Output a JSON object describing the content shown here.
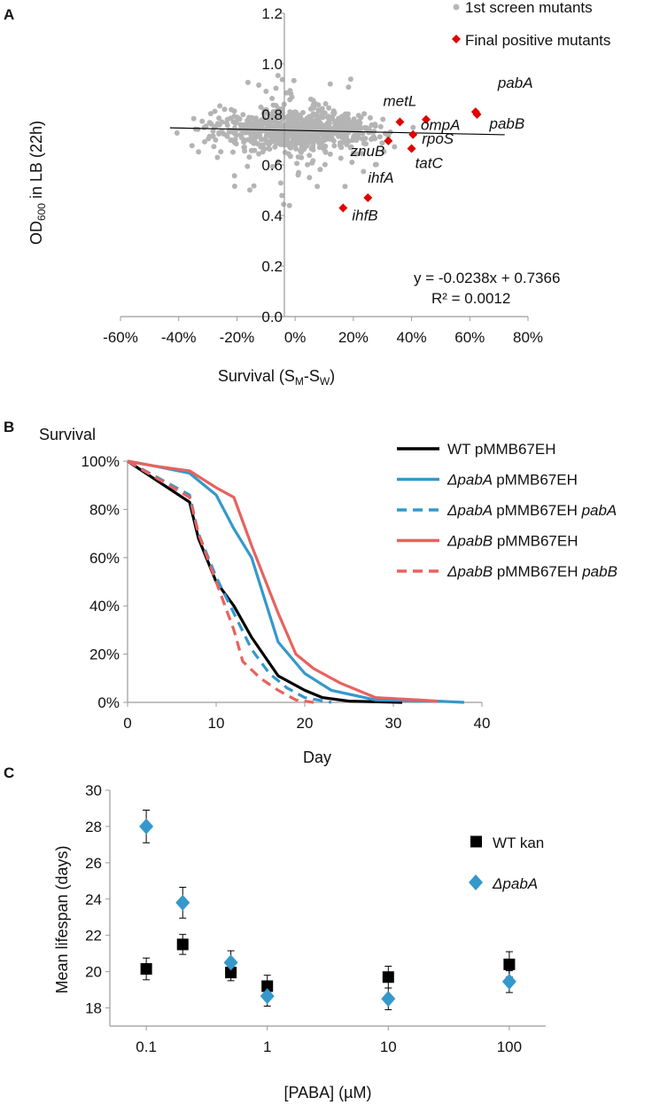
{
  "chart_data": [
    {
      "panel": "A",
      "type": "scatter",
      "xlabel_main": "Survival (S",
      "xlabel_sub1": "M",
      "xlabel_mid": "-S",
      "xlabel_sub2": "W",
      "xlabel_end": ")",
      "ylabel_pre": "OD",
      "ylabel_sub": "600",
      "ylabel_post": " in LB (22h)",
      "xlim": [
        -0.6,
        0.8
      ],
      "ylim": [
        0,
        1.2
      ],
      "x_ticks": [
        -0.6,
        -0.4,
        -0.2,
        0,
        0.2,
        0.4,
        0.6,
        0.8
      ],
      "x_tick_labels": [
        "-60%",
        "-40%",
        "-20%",
        "0%",
        "20%",
        "40%",
        "60%",
        "80%"
      ],
      "y_ticks": [
        0,
        0.2,
        0.4,
        0.6,
        0.8,
        1.0,
        1.2
      ],
      "y_tick_labels": [
        "0.0",
        "0.2",
        "0.4",
        "0.6",
        "0.8",
        "1.0",
        "1.2"
      ],
      "legend": [
        "1st screen mutants",
        "Final positive mutants"
      ],
      "trendline": {
        "slope": -0.0238,
        "intercept": 0.7366,
        "x_range": [
          -0.43,
          0.72
        ]
      },
      "equation": "y = -0.0238x + 0.7366",
      "r_squared": "R² = 0.0012",
      "series": [
        {
          "name": "Final positive mutants",
          "points": [
            {
              "label": "pabA",
              "x": 0.62,
              "y": 0.81
            },
            {
              "label": "pabB",
              "x": 0.625,
              "y": 0.8
            },
            {
              "label": "metL",
              "x": 0.36,
              "y": 0.77
            },
            {
              "label": "ompA",
              "x": 0.45,
              "y": 0.78
            },
            {
              "label": "rpoS",
              "x": 0.405,
              "y": 0.72
            },
            {
              "label": "znuB",
              "x": 0.32,
              "y": 0.695
            },
            {
              "label": "tatC",
              "x": 0.4,
              "y": 0.665
            },
            {
              "label": "ihfA",
              "x": 0.25,
              "y": 0.47
            },
            {
              "label": "ihfB",
              "x": 0.165,
              "y": 0.43
            }
          ]
        }
      ]
    },
    {
      "panel": "B",
      "type": "line",
      "ylabel": "Survival",
      "xlabel": "Day",
      "xlim": [
        0,
        40
      ],
      "ylim": [
        0,
        1
      ],
      "x_ticks": [
        0,
        10,
        20,
        30,
        40
      ],
      "x_tick_labels": [
        "0",
        "10",
        "20",
        "30",
        "40"
      ],
      "y_ticks": [
        0,
        0.2,
        0.4,
        0.6,
        0.8,
        1.0
      ],
      "y_tick_labels": [
        "0%",
        "20%",
        "40%",
        "60%",
        "80%",
        "100%"
      ],
      "series": [
        {
          "name": "WT pMMB67EH",
          "strain": "WT",
          "plasmid": "pMMB67EH",
          "insert": "",
          "italic": false,
          "color": "#000000",
          "dash": false,
          "x": [
            0,
            7,
            8,
            10,
            12,
            14,
            17,
            20,
            22,
            25,
            31
          ],
          "y": [
            1.0,
            0.83,
            0.68,
            0.5,
            0.4,
            0.27,
            0.11,
            0.05,
            0.02,
            0.005,
            0
          ]
        },
        {
          "name": "ΔpabA pMMB67EH",
          "strain": "ΔpabA",
          "plasmid": "pMMB67EH",
          "insert": "",
          "italic": true,
          "color": "#3598cb",
          "dash": false,
          "x": [
            0,
            3,
            7,
            10,
            12,
            14,
            17,
            20,
            23,
            28,
            35,
            38
          ],
          "y": [
            1.0,
            0.98,
            0.95,
            0.86,
            0.72,
            0.6,
            0.25,
            0.12,
            0.05,
            0.01,
            0.005,
            0
          ]
        },
        {
          "name": "ΔpabA pMMB67EH pabA",
          "strain": "ΔpabA",
          "plasmid": "pMMB67EH",
          "insert": "pabA",
          "italic": true,
          "color": "#3598cb",
          "dash": true,
          "x": [
            0,
            7,
            8,
            10,
            12,
            14,
            16,
            18,
            20,
            23
          ],
          "y": [
            1.0,
            0.86,
            0.7,
            0.52,
            0.37,
            0.22,
            0.12,
            0.06,
            0.02,
            0
          ]
        },
        {
          "name": "ΔpabB pMMB67EH",
          "strain": "ΔpabB",
          "plasmid": "pMMB67EH",
          "insert": "",
          "italic": true,
          "color": "#e8625e",
          "dash": false,
          "x": [
            0,
            3,
            7,
            10,
            12,
            14,
            17,
            19,
            21,
            24,
            28,
            33,
            35
          ],
          "y": [
            1.0,
            0.98,
            0.96,
            0.89,
            0.85,
            0.65,
            0.37,
            0.2,
            0.14,
            0.08,
            0.02,
            0.01,
            0.005
          ]
        },
        {
          "name": "ΔpabB pMMB67EH pabB",
          "strain": "ΔpabB",
          "plasmid": "pMMB67EH",
          "insert": "pabB",
          "italic": true,
          "color": "#e8625e",
          "dash": true,
          "x": [
            0,
            7,
            8,
            10,
            12,
            13,
            15,
            17,
            19,
            21
          ],
          "y": [
            1.0,
            0.85,
            0.7,
            0.5,
            0.3,
            0.17,
            0.1,
            0.05,
            0.01,
            0
          ]
        }
      ]
    },
    {
      "panel": "C",
      "type": "scatter",
      "xscale": "log",
      "xlabel": "[PABA] (µM)",
      "ylabel": "Mean lifespan (days)",
      "xlim": [
        0.05,
        200
      ],
      "ylim": [
        17,
        30
      ],
      "x_ticks": [
        0.1,
        1,
        10,
        100
      ],
      "x_tick_labels": [
        "0.1",
        "1",
        "10",
        "100"
      ],
      "y_ticks": [
        18,
        20,
        22,
        24,
        26,
        28,
        30
      ],
      "y_tick_labels": [
        "18",
        "20",
        "22",
        "24",
        "26",
        "28",
        "30"
      ],
      "series": [
        {
          "name": "WT kan",
          "italic": false,
          "marker": "square",
          "color": "#000000",
          "x": [
            0.1,
            0.2,
            0.5,
            1,
            10,
            100
          ],
          "y": [
            20.15,
            21.5,
            19.95,
            19.2,
            19.7,
            20.4
          ],
          "err": [
            0.6,
            0.55,
            0.45,
            0.6,
            0.6,
            0.7
          ]
        },
        {
          "name": "ΔpabA",
          "italic": true,
          "marker": "diamond",
          "color": "#3598cb",
          "x": [
            0.1,
            0.2,
            0.5,
            1,
            10,
            100
          ],
          "y": [
            28.0,
            23.8,
            20.5,
            18.65,
            18.5,
            19.45
          ],
          "err": [
            0.9,
            0.85,
            0.65,
            0.55,
            0.6,
            0.6
          ]
        }
      ]
    }
  ],
  "panels": [
    "A",
    "B",
    "C"
  ]
}
